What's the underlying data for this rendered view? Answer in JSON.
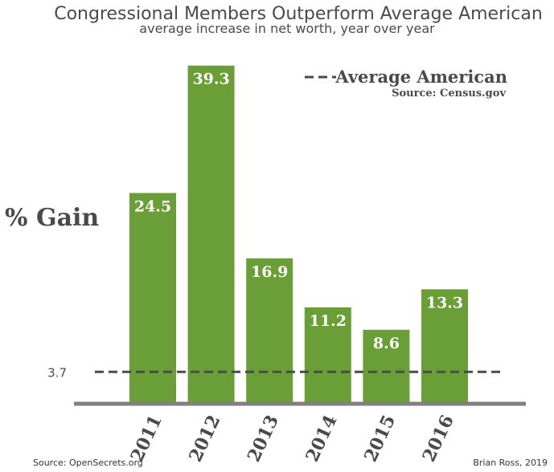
{
  "chart_data": {
    "type": "bar",
    "title": "Congressional Members Outperform Average American",
    "subtitle": "average increase in net worth, year over year",
    "ylabel": "% Gain",
    "categories": [
      "2011",
      "2012",
      "2013",
      "2014",
      "2015",
      "2016"
    ],
    "values": [
      24.5,
      39.3,
      16.9,
      11.2,
      8.6,
      13.3
    ],
    "value_labels": [
      "24.5",
      "39.3",
      "16.9",
      "11.2",
      "8.6",
      "13.3"
    ],
    "ylim": [
      0,
      40
    ],
    "grid": false,
    "reference_line": {
      "value": 3.7,
      "tick_label": "3.7",
      "style": "dashed",
      "legend_label": "Average American",
      "legend_source": "Source: Census.gov"
    },
    "legend_placement": "top-right",
    "bar_color": "#6a9e37",
    "axis_color": "#808080",
    "line_color": "#4a4a4a",
    "footer_left": "Source: OpenSecrets.org",
    "footer_right": "Brian Ross, 2019"
  }
}
